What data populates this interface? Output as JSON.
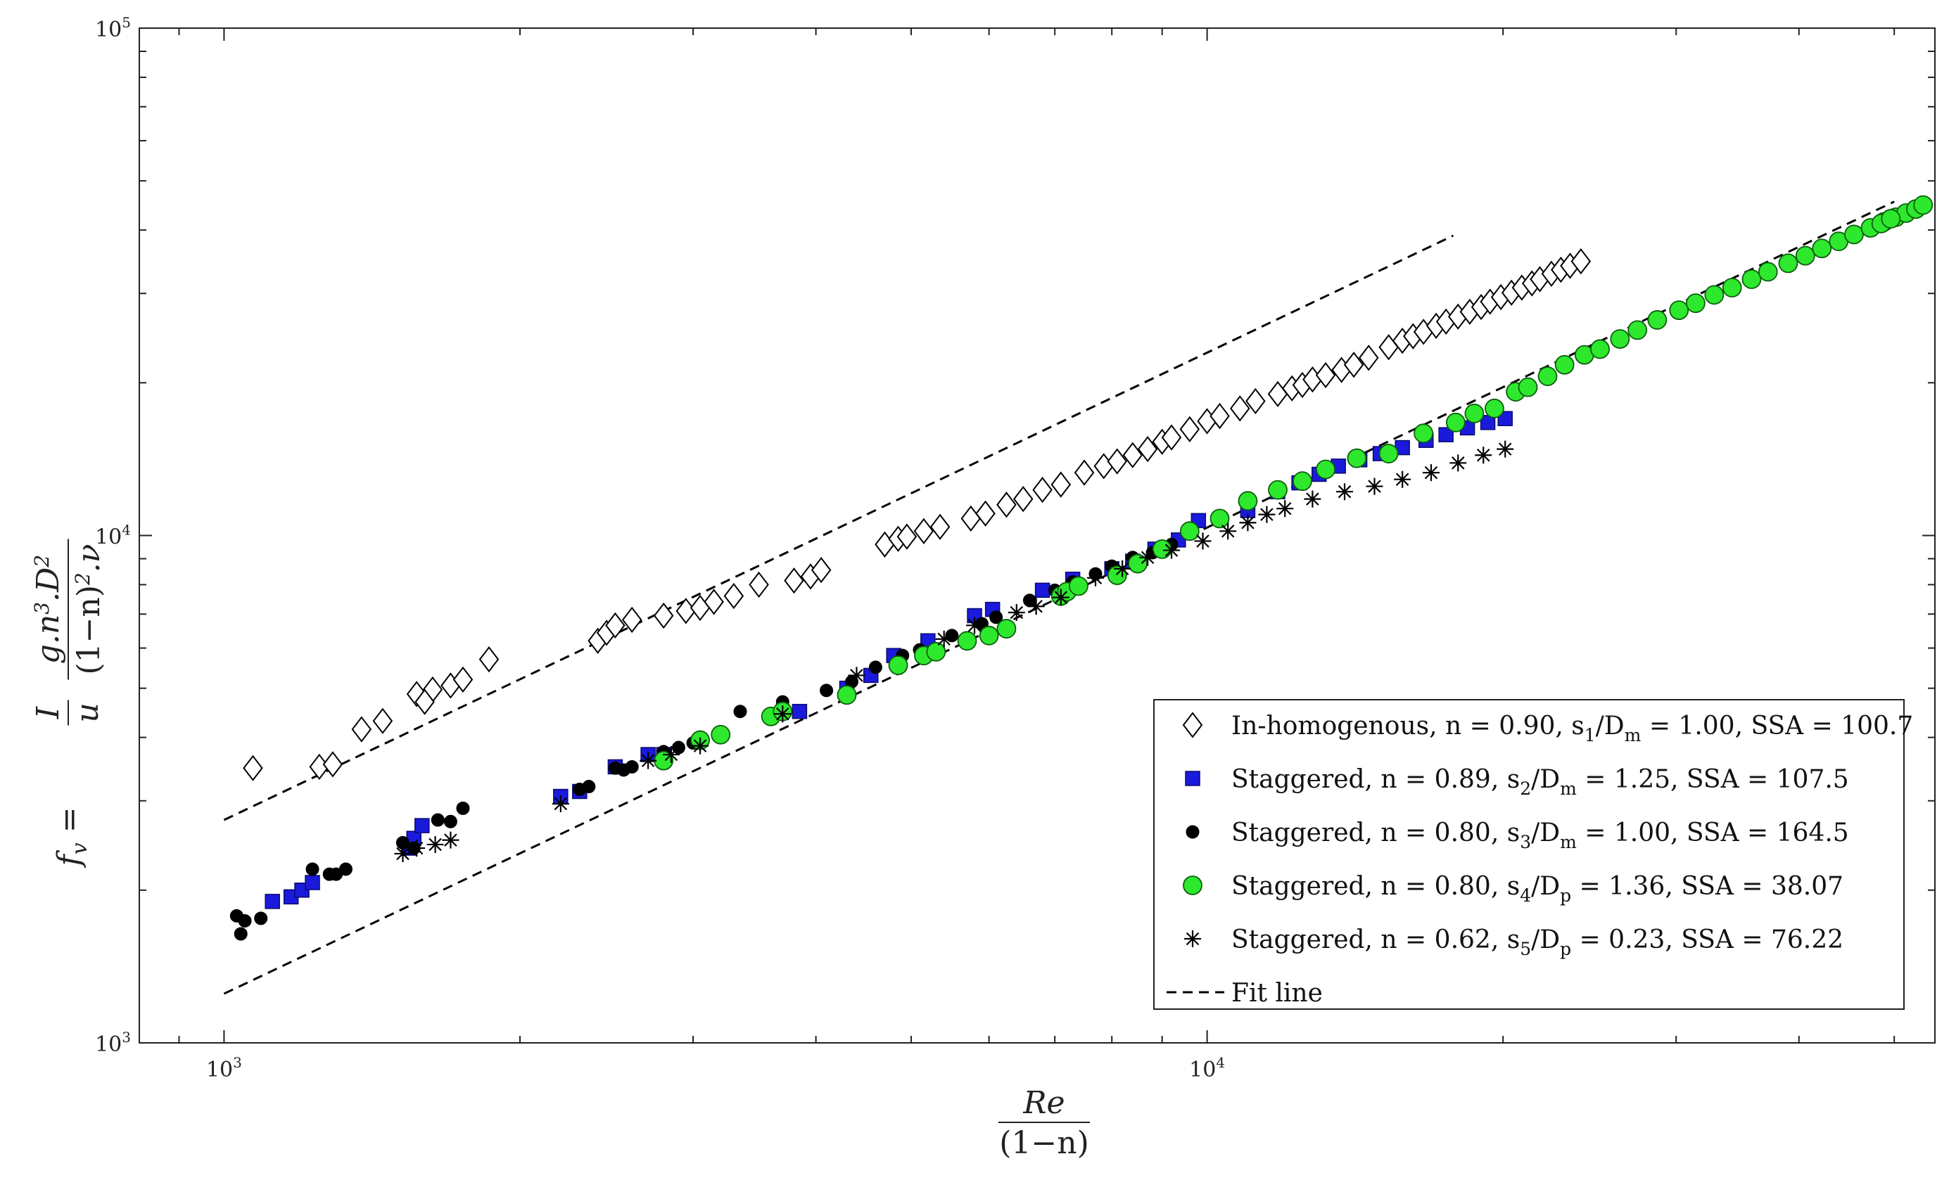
{
  "chart_data": {
    "type": "scatter",
    "title": "",
    "xlabel_parts": [
      "Re",
      "(1−n)"
    ],
    "ylabel_parts": [
      "f",
      "v",
      " = ",
      "I",
      "u",
      "g.n",
      "3",
      ".D",
      "2",
      "(1−n)",
      "2",
      ".ν"
    ],
    "x_scale": "log",
    "y_scale": "log",
    "xlim": [
      820,
      55000
    ],
    "ylim": [
      1000,
      100000
    ],
    "x_ticks": [
      {
        "base": "10",
        "exp": "3",
        "value": 1000
      },
      {
        "base": "10",
        "exp": "4",
        "value": 10000
      }
    ],
    "y_ticks": [
      {
        "base": "10",
        "exp": "3",
        "value": 1000
      },
      {
        "base": "10",
        "exp": "4",
        "value": 10000
      },
      {
        "base": "10",
        "exp": "5",
        "value": 100000
      }
    ],
    "grid": false,
    "legend_position": "bottom-right",
    "series": [
      {
        "key": "inhomogenous",
        "marker": "diamond",
        "color": "#ffffff",
        "stroke": "#000000",
        "legend": {
          "pre": "In-homogenous, n = 0.90, s",
          "sub1": "1",
          "mid": "/D",
          "sub2": "m",
          "post": " = 1.00, SSA = 100.7"
        },
        "points": [
          [
            1070,
            3480
          ],
          [
            1250,
            3500
          ],
          [
            1290,
            3540
          ],
          [
            1380,
            4150
          ],
          [
            1450,
            4310
          ],
          [
            1570,
            4870
          ],
          [
            1630,
            4970
          ],
          [
            1700,
            5060
          ],
          [
            1600,
            4700
          ],
          [
            1750,
            5200
          ],
          [
            1860,
            5700
          ],
          [
            2400,
            6200
          ],
          [
            2450,
            6430
          ],
          [
            2500,
            6650
          ],
          [
            2600,
            6820
          ],
          [
            2800,
            6950
          ],
          [
            2950,
            7100
          ],
          [
            3050,
            7200
          ],
          [
            3150,
            7400
          ],
          [
            3300,
            7600
          ],
          [
            3500,
            8000
          ],
          [
            3800,
            8150
          ],
          [
            3950,
            8300
          ],
          [
            4050,
            8550
          ],
          [
            4700,
            9600
          ],
          [
            4850,
            9850
          ],
          [
            4950,
            9950
          ],
          [
            5150,
            10200
          ],
          [
            5350,
            10400
          ],
          [
            5750,
            10800
          ],
          [
            5950,
            11050
          ],
          [
            6250,
            11500
          ],
          [
            6500,
            11800
          ],
          [
            6800,
            12300
          ],
          [
            7100,
            12600
          ],
          [
            7500,
            13300
          ],
          [
            7850,
            13700
          ],
          [
            8100,
            14000
          ],
          [
            8400,
            14400
          ],
          [
            8700,
            14800
          ],
          [
            9000,
            15300
          ],
          [
            9200,
            15600
          ],
          [
            9600,
            16200
          ],
          [
            10000,
            16800
          ],
          [
            10300,
            17200
          ],
          [
            10800,
            17800
          ],
          [
            11200,
            18400
          ],
          [
            11800,
            19000
          ],
          [
            12200,
            19500
          ],
          [
            12500,
            19800
          ],
          [
            12800,
            20300
          ],
          [
            13200,
            20700
          ],
          [
            13700,
            21200
          ],
          [
            14100,
            21700
          ],
          [
            14600,
            22400
          ],
          [
            15300,
            23500
          ],
          [
            15800,
            24200
          ],
          [
            16200,
            24700
          ],
          [
            16600,
            25200
          ],
          [
            17100,
            25900
          ],
          [
            17500,
            26400
          ],
          [
            18000,
            27000
          ],
          [
            18500,
            27600
          ],
          [
            19000,
            28200
          ],
          [
            19400,
            28900
          ],
          [
            19900,
            29500
          ],
          [
            20400,
            30100
          ],
          [
            20900,
            30800
          ],
          [
            21400,
            31400
          ],
          [
            21800,
            32000
          ],
          [
            22400,
            32800
          ],
          [
            22900,
            33400
          ],
          [
            23400,
            34000
          ],
          [
            24000,
            34700
          ]
        ]
      },
      {
        "key": "staggered_089",
        "marker": "square",
        "color": "#1a1adc",
        "stroke": "#0a0a70",
        "legend": {
          "pre": "Staggered, n = 0.89, s",
          "sub1": "2",
          "mid": "/D",
          "sub2": "m",
          "post": " = 1.25, SSA = 107.5"
        },
        "points": [
          [
            1120,
            1900
          ],
          [
            1170,
            1940
          ],
          [
            1200,
            2000
          ],
          [
            1230,
            2070
          ],
          [
            1540,
            2420
          ],
          [
            1560,
            2530
          ],
          [
            1590,
            2680
          ],
          [
            2200,
            3060
          ],
          [
            2300,
            3130
          ],
          [
            2500,
            3500
          ],
          [
            2700,
            3700
          ],
          [
            2800,
            3700
          ],
          [
            3850,
            4500
          ],
          [
            4300,
            5000
          ],
          [
            4550,
            5300
          ],
          [
            4800,
            5800
          ],
          [
            5200,
            6200
          ],
          [
            5800,
            6950
          ],
          [
            6050,
            7150
          ],
          [
            6800,
            7800
          ],
          [
            7300,
            8200
          ],
          [
            8000,
            8600
          ],
          [
            8400,
            8900
          ],
          [
            8850,
            9400
          ],
          [
            9350,
            9800
          ],
          [
            9800,
            10700
          ],
          [
            11000,
            11200
          ],
          [
            11800,
            12200
          ],
          [
            12400,
            12700
          ],
          [
            13000,
            13200
          ],
          [
            13600,
            13700
          ],
          [
            14300,
            14100
          ],
          [
            15000,
            14500
          ],
          [
            15800,
            14900
          ],
          [
            16700,
            15400
          ],
          [
            17500,
            15800
          ],
          [
            18400,
            16300
          ],
          [
            19300,
            16700
          ],
          [
            20100,
            17000
          ]
        ]
      },
      {
        "key": "staggered_080_s3",
        "marker": "dot",
        "color": "#000000",
        "stroke": "#000000",
        "legend": {
          "pre": "Staggered, n = 0.80, s",
          "sub1": "3",
          "mid": "/D",
          "sub2": "m",
          "post": " = 1.00, SSA = 164.5"
        },
        "points": [
          [
            1030,
            1780
          ],
          [
            1050,
            1740
          ],
          [
            1090,
            1760
          ],
          [
            1040,
            1640
          ],
          [
            1230,
            2200
          ],
          [
            1280,
            2150
          ],
          [
            1300,
            2150
          ],
          [
            1330,
            2200
          ],
          [
            1520,
            2480
          ],
          [
            1560,
            2420
          ],
          [
            1650,
            2750
          ],
          [
            1700,
            2730
          ],
          [
            1750,
            2900
          ],
          [
            2300,
            3160
          ],
          [
            2350,
            3200
          ],
          [
            2500,
            3480
          ],
          [
            2550,
            3450
          ],
          [
            2600,
            3500
          ],
          [
            2800,
            3750
          ],
          [
            2900,
            3820
          ],
          [
            3000,
            3900
          ],
          [
            3350,
            4500
          ],
          [
            3700,
            4700
          ],
          [
            4100,
            4950
          ],
          [
            4350,
            5150
          ],
          [
            4600,
            5500
          ],
          [
            4900,
            5800
          ],
          [
            5100,
            5950
          ],
          [
            5500,
            6350
          ],
          [
            5900,
            6700
          ],
          [
            6100,
            6900
          ],
          [
            6600,
            7450
          ],
          [
            7000,
            7800
          ],
          [
            7300,
            8100
          ],
          [
            7700,
            8400
          ],
          [
            8000,
            8700
          ],
          [
            8400,
            9050
          ],
          [
            8800,
            9250
          ],
          [
            9200,
            9600
          ]
        ]
      },
      {
        "key": "staggered_080_s4",
        "marker": "circle",
        "color": "#2ee82e",
        "stroke": "#0b5f0b",
        "legend": {
          "pre": "Staggered, n = 0.80, s",
          "sub1": "4",
          "mid": "/D",
          "sub2": "p",
          "post": " = 1.36, SSA = 38.07"
        },
        "points": [
          [
            2800,
            3600
          ],
          [
            3050,
            3950
          ],
          [
            3200,
            4050
          ],
          [
            3600,
            4400
          ],
          [
            3700,
            4500
          ],
          [
            4300,
            4850
          ],
          [
            4850,
            5550
          ],
          [
            5150,
            5800
          ],
          [
            5300,
            5900
          ],
          [
            5700,
            6200
          ],
          [
            6000,
            6350
          ],
          [
            6250,
            6550
          ],
          [
            7100,
            7600
          ],
          [
            7200,
            7750
          ],
          [
            7400,
            7950
          ],
          [
            8100,
            8350
          ],
          [
            8500,
            8800
          ],
          [
            9000,
            9400
          ],
          [
            9600,
            10200
          ],
          [
            10300,
            10800
          ],
          [
            11000,
            11700
          ],
          [
            11800,
            12300
          ],
          [
            12500,
            12800
          ],
          [
            13200,
            13500
          ],
          [
            14200,
            14200
          ],
          [
            15300,
            14500
          ],
          [
            16600,
            15900
          ],
          [
            17900,
            16700
          ],
          [
            18700,
            17400
          ],
          [
            19600,
            17800
          ],
          [
            20600,
            19200
          ],
          [
            21200,
            19600
          ],
          [
            22200,
            20600
          ],
          [
            23100,
            21700
          ],
          [
            24200,
            22700
          ],
          [
            25100,
            23300
          ],
          [
            26300,
            24400
          ],
          [
            27400,
            25400
          ],
          [
            28700,
            26600
          ],
          [
            30200,
            27800
          ],
          [
            31400,
            28700
          ],
          [
            32800,
            29800
          ],
          [
            34200,
            30800
          ],
          [
            35800,
            32000
          ],
          [
            37200,
            33100
          ],
          [
            39000,
            34400
          ],
          [
            40600,
            35600
          ],
          [
            42200,
            36800
          ],
          [
            43900,
            38000
          ],
          [
            45500,
            39200
          ],
          [
            47300,
            40400
          ],
          [
            48800,
            41500
          ],
          [
            50200,
            42400
          ],
          [
            51400,
            43200
          ],
          [
            52600,
            44000
          ],
          [
            53500,
            44800
          ],
          [
            48500,
            41200
          ],
          [
            49600,
            42100
          ]
        ]
      },
      {
        "key": "staggered_062",
        "marker": "asterisk",
        "color": "#000000",
        "stroke": "#000000",
        "legend": {
          "pre": "Staggered, n = 0.62, s",
          "sub1": "5",
          "mid": "/D",
          "sub2": "p",
          "post": " = 0.23, SSA = 76.22"
        },
        "points": [
          [
            1520,
            2360
          ],
          [
            1570,
            2420
          ],
          [
            1640,
            2460
          ],
          [
            1700,
            2510
          ],
          [
            2200,
            2960
          ],
          [
            2700,
            3600
          ],
          [
            2850,
            3700
          ],
          [
            3050,
            3850
          ],
          [
            3700,
            4450
          ],
          [
            4400,
            5300
          ],
          [
            5400,
            6250
          ],
          [
            5800,
            6650
          ],
          [
            6400,
            7050
          ],
          [
            6700,
            7250
          ],
          [
            7100,
            7550
          ],
          [
            7700,
            8250
          ],
          [
            8200,
            8600
          ],
          [
            8700,
            9050
          ],
          [
            9200,
            9350
          ],
          [
            9900,
            9750
          ],
          [
            10500,
            10200
          ],
          [
            11000,
            10600
          ],
          [
            11500,
            11000
          ],
          [
            12000,
            11300
          ],
          [
            12800,
            11800
          ],
          [
            13800,
            12200
          ],
          [
            14800,
            12500
          ],
          [
            15800,
            12900
          ],
          [
            16900,
            13300
          ],
          [
            18000,
            13900
          ],
          [
            19100,
            14400
          ],
          [
            20100,
            14800
          ]
        ]
      },
      {
        "key": "fit_line",
        "marker": "dashed-line",
        "color": "#000000",
        "stroke": "#000000",
        "legend": {
          "pre": "Fit line",
          "sub1": "",
          "mid": "",
          "sub2": "",
          "post": ""
        },
        "lines": [
          {
            "x": [
              1000,
              17800
            ],
            "y": [
              2750,
              39000
            ]
          },
          {
            "x": [
              1000,
              50000
            ],
            "y": [
              1250,
              45500
            ]
          }
        ]
      }
    ]
  }
}
